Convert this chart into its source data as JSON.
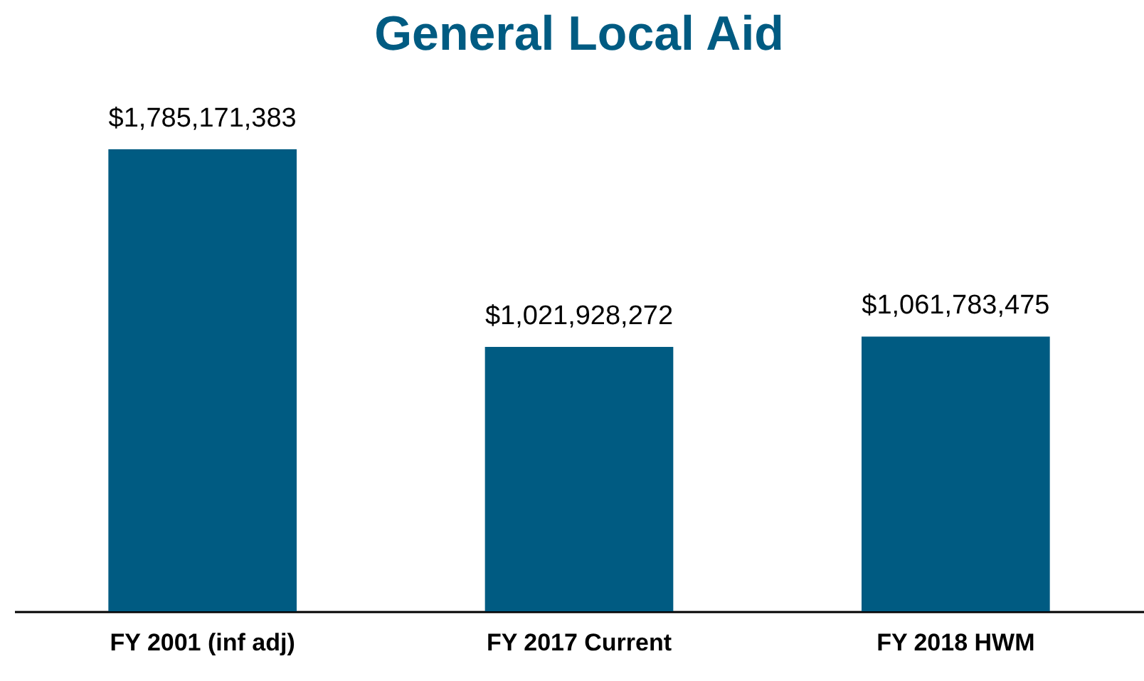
{
  "chart_data": {
    "type": "bar",
    "title": "General Local Aid",
    "categories": [
      "FY 2001 (inf adj)",
      "FY 2017 Current",
      "FY 2018 HWM"
    ],
    "values": [
      1785171383,
      1021928272,
      1061783475
    ],
    "color": "#005b82",
    "value_labels": [
      "$1,785,171,383",
      "$1,021,928,272",
      "$1,061,783,475"
    ]
  }
}
